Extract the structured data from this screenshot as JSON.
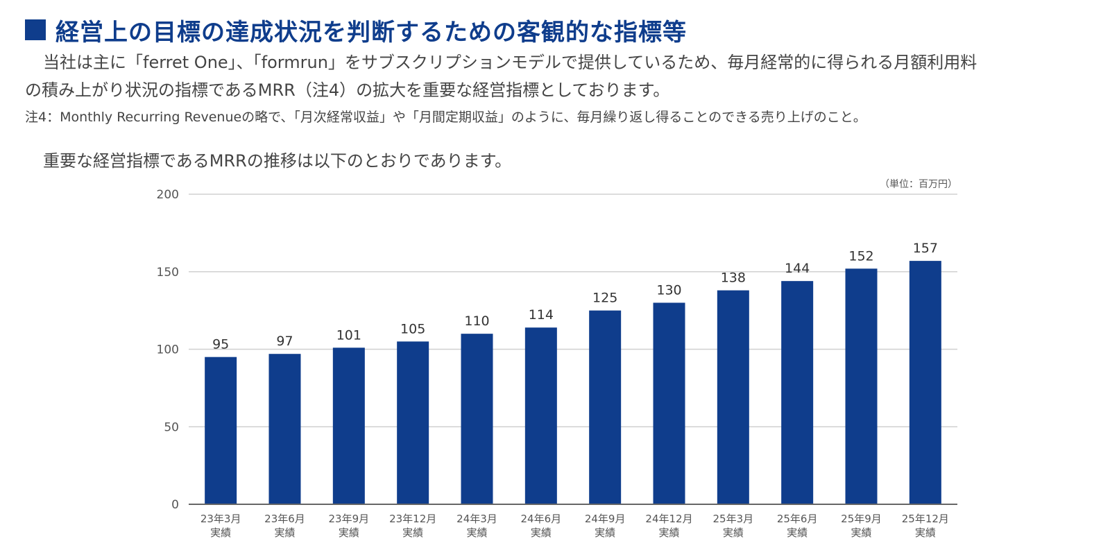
{
  "heading": {
    "title": "経営上の目標の達成状況を判断するための客観的な指標等",
    "accent_color": "#0f3d8c"
  },
  "paragraph": {
    "line1": "当社は主に「ferret One」、「formrun」をサブスクリプションモデルで提供しているため、毎月経常的に得られる月額利用料",
    "line2": "の積み上がり状況の指標であるMRR（注4）の拡大を重要な経営指標としております。"
  },
  "note": "注4：Monthly Recurring Revenueの略で、「月次経常収益」や「月間定期収益」のように、毎月繰り返し得ることのできる売り上げのこと。",
  "intro": "重要な経営指標であるMRRの推移は以下のとおりであります。",
  "chart_data": {
    "type": "bar",
    "title": "",
    "unit_label": "（単位：百万円）",
    "categories": [
      [
        "23年3月",
        "実績"
      ],
      [
        "23年6月",
        "実績"
      ],
      [
        "23年9月",
        "実績"
      ],
      [
        "23年12月",
        "実績"
      ],
      [
        "24年3月",
        "実績"
      ],
      [
        "24年6月",
        "実績"
      ],
      [
        "24年9月",
        "実績"
      ],
      [
        "24年12月",
        "実績"
      ],
      [
        "25年3月",
        "実績"
      ],
      [
        "25年6月",
        "実績"
      ],
      [
        "25年9月",
        "実績"
      ],
      [
        "25年12月",
        "実績"
      ]
    ],
    "values": [
      95,
      97,
      101,
      105,
      110,
      114,
      125,
      130,
      138,
      144,
      152,
      157
    ],
    "value_labels": [
      "95",
      "97",
      "101",
      "105",
      "110",
      "114",
      "125",
      "130",
      "138",
      "144",
      "152",
      "157"
    ],
    "ylim": [
      0,
      200
    ],
    "yticks": [
      0,
      50,
      100,
      150,
      200
    ],
    "ytick_labels": [
      "0",
      "50",
      "100",
      "150",
      "200"
    ],
    "grid": true,
    "bar_color": "#0f3d8c",
    "grid_color": "#d0d0d0",
    "axis_color": "#666666"
  }
}
